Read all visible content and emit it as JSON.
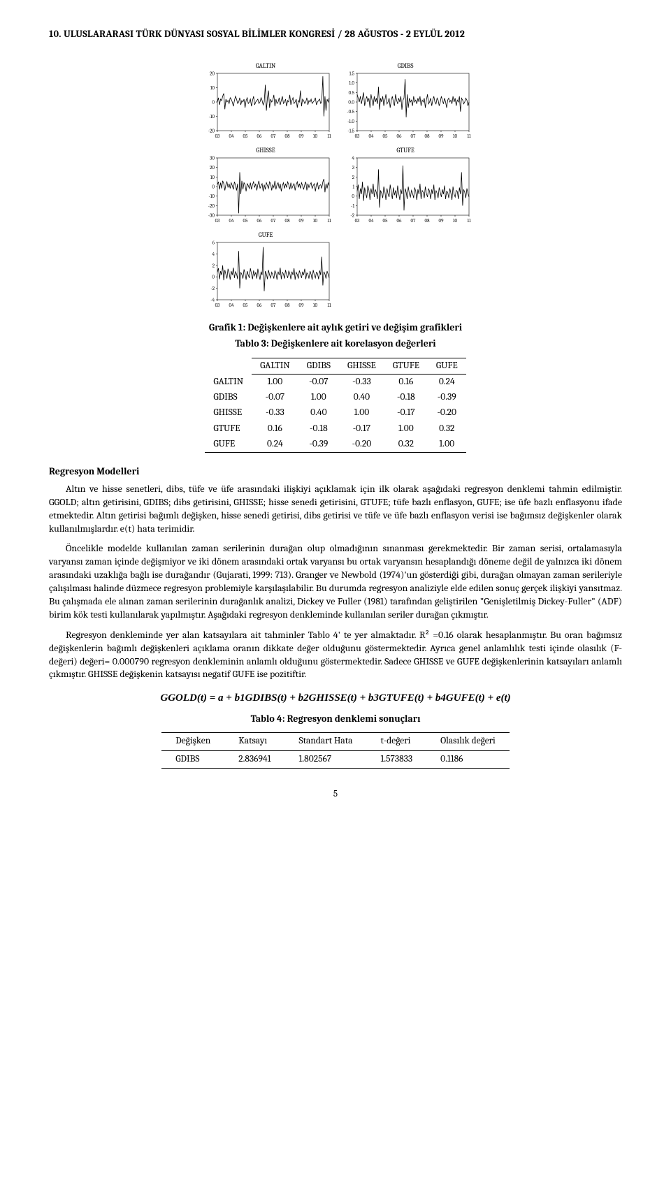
{
  "header": "10. ULUSLARARASI TÜRK DÜNYASI SOSYAL BİLİMLER KONGRESİ / 28 AĞUSTOS - 2 EYLÜL 2012",
  "charts": {
    "grid": {
      "cols": 2,
      "rows": 3
    },
    "x_ticks": [
      "03",
      "04",
      "05",
      "06",
      "07",
      "08",
      "09",
      "10",
      "11"
    ],
    "panel_title_fontsize": 9,
    "axis_fontsize": 7,
    "line_color": "#000000",
    "axis_color": "#000000",
    "background_color": "#ffffff",
    "panels": [
      {
        "name": "GALTIN",
        "ylim": [
          -20,
          20
        ],
        "ytick_step": 10,
        "series": [
          0,
          3,
          -2,
          2,
          1,
          4,
          6,
          -5,
          2,
          0,
          1,
          -1,
          3,
          2,
          0,
          -3,
          1,
          4,
          2,
          -1,
          0,
          3,
          -2,
          1,
          0,
          2,
          -4,
          1,
          3,
          -1,
          0,
          2,
          -3,
          1,
          4,
          -2,
          0,
          1,
          2,
          -1,
          0,
          3,
          1,
          -2,
          0,
          12,
          -6,
          3,
          8,
          -4,
          2,
          0,
          1,
          5,
          -3,
          2,
          -1,
          0,
          3,
          -2,
          1,
          4,
          -1,
          0,
          2,
          -3,
          1,
          0,
          5,
          -2,
          1,
          3,
          -1,
          0,
          2,
          -4,
          1,
          0,
          8,
          -3,
          2,
          1,
          -1,
          0,
          3,
          -2,
          1,
          0,
          2,
          -1,
          0,
          1,
          3,
          -2,
          0,
          1,
          2,
          -1,
          0,
          18,
          -10,
          4,
          -6,
          2,
          0,
          3
        ]
      },
      {
        "name": "GDIBS",
        "ylim": [
          -1.5,
          1.5
        ],
        "ytick_step": 0.5,
        "series": [
          0.4,
          0.2,
          0,
          0.3,
          -0.1,
          0.2,
          0.5,
          -0.2,
          0.1,
          0.3,
          0,
          0.2,
          -0.3,
          0.4,
          0.1,
          -0.2,
          0.3,
          0,
          0.2,
          -0.1,
          0.8,
          -0.4,
          0.2,
          0,
          0.3,
          -0.2,
          0.1,
          0.4,
          -0.1,
          0,
          0.2,
          -0.3,
          0.1,
          0.3,
          0,
          -0.2,
          0.4,
          0.1,
          -0.1,
          0.2,
          0,
          0.3,
          -0.4,
          0.1,
          0.2,
          1.2,
          -0.8,
          0.4,
          -0.3,
          0.2,
          0,
          0.1,
          -0.2,
          0.3,
          0,
          0.1,
          -0.1,
          0.2,
          0,
          0.3,
          -0.2,
          0.1,
          0,
          0.2,
          -0.3,
          0.1,
          0.4,
          -0.1,
          0,
          0.2,
          -0.2,
          0.1,
          0.3,
          0,
          -0.1,
          0.2,
          0.1,
          -0.2,
          0,
          0.3,
          0.1,
          -0.1,
          0.2,
          0,
          -0.3,
          0.1,
          0.2,
          0,
          0.1,
          -0.1,
          0.3,
          0,
          0.2,
          -0.2,
          0.1,
          0,
          0.3,
          -0.5,
          0.2,
          0.1,
          -0.1,
          0,
          0.2,
          0.1,
          -0.2,
          0
        ]
      },
      {
        "name": "GHISSE",
        "ylim": [
          -30,
          30
        ],
        "ytick_step": 10,
        "series": [
          2,
          5,
          -3,
          4,
          -2,
          6,
          3,
          -4,
          2,
          5,
          -1,
          3,
          -2,
          4,
          1,
          -3,
          5,
          2,
          -4,
          3,
          -28,
          15,
          -8,
          6,
          -3,
          4,
          2,
          -5,
          3,
          1,
          -2,
          4,
          -3,
          2,
          5,
          -1,
          3,
          -4,
          2,
          6,
          -2,
          1,
          3,
          -5,
          2,
          -3,
          4,
          1,
          -2,
          5,
          3,
          -4,
          2,
          -1,
          6,
          -3,
          2,
          4,
          -2,
          3,
          -5,
          1,
          4,
          -2,
          3,
          -1,
          5,
          2,
          -3,
          4,
          -2,
          1,
          3,
          -4,
          2,
          5,
          -1,
          3,
          -2,
          4,
          1,
          -3,
          2,
          5,
          -4,
          3,
          -1,
          2,
          4,
          -2,
          1,
          3,
          -5,
          2,
          4,
          -3,
          1,
          2,
          -2,
          5,
          8,
          -6,
          3,
          -2,
          4,
          1
        ]
      },
      {
        "name": "GTUFE",
        "ylim": [
          -2,
          4
        ],
        "ytick_step": 1,
        "series": [
          0.5,
          1.2,
          -0.3,
          0.8,
          0.2,
          1.5,
          -0.5,
          0.9,
          0.3,
          -0.2,
          1.1,
          0.6,
          -0.4,
          0.8,
          0.2,
          1.3,
          -0.1,
          0.7,
          0.4,
          -0.3,
          2.8,
          -1.2,
          0.6,
          0.3,
          -0.2,
          1.0,
          0.5,
          -0.4,
          0.8,
          0.2,
          -0.1,
          1.2,
          0.4,
          -0.3,
          0.9,
          0.1,
          0.6,
          -0.2,
          1.1,
          0.3,
          -0.4,
          0.7,
          0.2,
          3.2,
          -1.5,
          0.8,
          0.4,
          -0.3,
          1.0,
          0.2,
          -0.1,
          0.6,
          0.3,
          -0.2,
          0.9,
          0.5,
          -0.4,
          0.7,
          0.2,
          1.3,
          -0.3,
          0.6,
          0.4,
          -0.2,
          1.0,
          0.3,
          -0.1,
          0.8,
          0.5,
          -0.3,
          0.7,
          0.2,
          1.2,
          -0.4,
          0.6,
          0.3,
          -0.2,
          0.9,
          0.4,
          -0.1,
          0.7,
          0.2,
          1.1,
          -0.3,
          0.5,
          0.4,
          -0.2,
          0.8,
          0.3,
          -0.4,
          1.0,
          0.2,
          -0.1,
          0.6,
          0.5,
          -0.3,
          0.9,
          0.2,
          2.5,
          -1.0,
          0.7,
          0.4,
          -0.2,
          0.8,
          0.3,
          -0.1
        ]
      },
      {
        "name": "GUFE",
        "ylim": [
          -4,
          6
        ],
        "ytick_step": 2,
        "series": [
          0.8,
          1.5,
          -0.4,
          1.0,
          0.3,
          2.0,
          -0.6,
          1.2,
          0.4,
          -0.3,
          1.4,
          0.7,
          -0.5,
          1.0,
          0.3,
          1.6,
          -0.2,
          0.9,
          0.5,
          -0.4,
          4.5,
          -2.0,
          0.8,
          0.4,
          -0.3,
          1.3,
          0.6,
          -0.5,
          1.0,
          0.3,
          -0.2,
          1.5,
          0.5,
          -0.4,
          1.1,
          0.2,
          0.8,
          -0.3,
          1.4,
          0.4,
          -0.5,
          0.9,
          0.3,
          5.2,
          -2.5,
          1.0,
          0.5,
          -0.4,
          1.2,
          0.3,
          -0.2,
          0.8,
          0.4,
          -0.3,
          1.1,
          0.6,
          -0.5,
          0.9,
          0.3,
          1.6,
          -0.4,
          0.8,
          0.5,
          -0.3,
          1.2,
          0.4,
          -0.2,
          1.0,
          0.6,
          -0.4,
          0.9,
          0.3,
          1.5,
          -0.5,
          0.8,
          0.4,
          -0.3,
          1.1,
          0.5,
          -0.2,
          0.9,
          0.3,
          1.4,
          -0.4,
          0.7,
          0.5,
          -0.3,
          1.0,
          0.4,
          -0.5,
          1.2,
          0.3,
          -0.2,
          0.8,
          0.6,
          -0.4,
          1.1,
          0.3,
          3.5,
          -1.5,
          0.9,
          0.5,
          -0.3,
          1.0,
          0.4,
          -0.2
        ]
      }
    ]
  },
  "fig_caption": "Grafik 1: Değişkenlere ait aylık getiri ve değişim grafikleri",
  "corr_caption": "Tablo 3: Değişkenlere ait korelasyon değerleri",
  "corr_table": {
    "columns": [
      "",
      "GALTIN",
      "GDIBS",
      "GHISSE",
      "GTUFE",
      "GUFE"
    ],
    "rows": [
      [
        "GALTIN",
        "1.00",
        "-0.07",
        "-0.33",
        "0.16",
        "0.24"
      ],
      [
        "GDIBS",
        "-0.07",
        "1.00",
        "0.40",
        "-0.18",
        "-0.39"
      ],
      [
        "GHISSE",
        "-0.33",
        "0.40",
        "1.00",
        "-0.17",
        "-0.20"
      ],
      [
        "GTUFE",
        "0.16",
        "-0.18",
        "-0.17",
        "1.00",
        "0.32"
      ],
      [
        "GUFE",
        "0.24",
        "-0.39",
        "-0.20",
        "0.32",
        "1.00"
      ]
    ]
  },
  "section_title": "Regresyon Modelleri",
  "paragraphs": {
    "p1": "Altın ve hisse senetleri, dibs, tüfe ve üfe arasındaki ilişkiyi açıklamak için ilk olarak aşağıdaki regresyon denklemi tahmin edilmiştir. GGOLD; altın getirisini, GDIBS; dibs getirisini, GHISSE; hisse senedi getirisini, GTUFE; tüfe bazlı enflasyon, GUFE; ise üfe bazlı enflasyonu ifade etmektedir. Altın getirisi bağımlı değişken, hisse senedi getirisi, dibs getirisi ve tüfe ve üfe bazlı enflasyon verisi ise bağımsız değişkenler olarak kullanılmışlardır. e(t) hata terimidir.",
    "p2": "Öncelikle modelde kullanılan zaman serilerinin durağan olup olmadığının sınanması gerekmektedir. Bir zaman serisi, ortalamasıyla varyansı zaman içinde değişmiyor ve iki dönem arasındaki ortak varyansı bu ortak varyansın hesaplandığı döneme değil de yalnızca iki dönem arasındaki uzaklığa bağlı ise durağandır (Gujarati, 1999: 713). Granger ve Newbold (1974)'un gösterdiği gibi, durağan olmayan zaman serileriyle çalışılması halinde düzmece regresyon problemiyle karşılaşılabilir. Bu durumda regresyon analiziyle elde edilen sonuç gerçek ilişkiyi yansıtmaz. Bu çalışmada ele alınan zaman serilerinin durağanlık analizi, Dickey ve Fuller (1981) tarafından geliştirilen \"Genişletilmiş Dickey-Fuller\" (ADF) birim kök testi kullanılarak yapılmıştır. Aşağıdaki regresyon denkleminde kullanılan seriler durağan çıkmıştır.",
    "p3": "Regresyon denkleminde yer alan katsayılara ait tahminler Tablo 4' te yer almaktadır. R² =0.16 olarak hesaplanmıştır. Bu oran bağımsız değişkenlerin bağımlı değişkenleri açıklama oranın dikkate değer olduğunu göstermektedir. Ayrıca genel anlamlılık testi içinde olasılık (F-değeri) değeri= 0.000790 regresyon denkleminin anlamlı olduğunu göstermektedir. Sadece GHISSE ve GUFE değişkenlerinin katsayıları anlamlı çıkmıştır. GHISSE değişkenin katsayısı negatif GUFE ise pozitiftir."
  },
  "equation": "GGOLD(t) = a + b1GDIBS(t) + b2GHISSE(t) +  b3GTUFE(t) +  b4GUFE(t) +  e(t)",
  "reg_caption": "Tablo 4: Regresyon denklemi sonuçları",
  "reg_table": {
    "columns": [
      "Değişken",
      "Katsayı",
      "Standart Hata",
      "t-değeri",
      "Olasılık değeri"
    ],
    "rows": [
      [
        "GDIBS",
        "2.836941",
        "1.802567",
        "1.573833",
        "0.1186"
      ]
    ]
  },
  "page_number": "5"
}
